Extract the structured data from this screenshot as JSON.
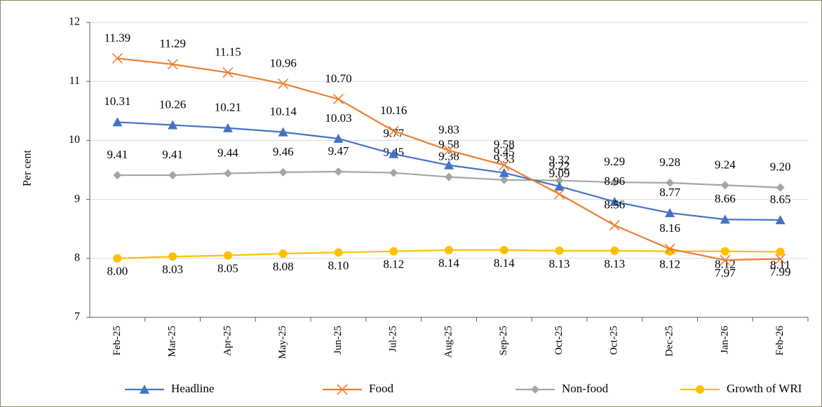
{
  "chart_data": {
    "type": "line",
    "y_label": "Per cent",
    "categories": [
      "Feb-25",
      "Mar-25",
      "Apr-25",
      "May-25",
      "Jun-25",
      "Jul-25",
      "Aug-25",
      "Sep-25",
      "Oct-25",
      "Oct-25",
      "Dec-25",
      "Jan-26",
      "Feb-26"
    ],
    "ylim": [
      7,
      12
    ],
    "yticks": [
      7,
      8,
      9,
      10,
      11,
      12
    ],
    "grid": true,
    "legend": "bottom",
    "series": [
      {
        "name": "Headline",
        "color": "#4472c4",
        "marker": "triangle",
        "values": [
          10.31,
          10.26,
          10.21,
          10.14,
          10.03,
          9.77,
          9.58,
          9.45,
          9.22,
          8.96,
          8.77,
          8.66,
          8.65
        ],
        "value_labels": [
          "10.31",
          "10.26",
          "10.21",
          "10.14",
          "10.03",
          "9.77",
          "9.58",
          "9.45",
          "9.22",
          "8.96",
          "8.77",
          "8.66",
          "8.65"
        ]
      },
      {
        "name": "Food",
        "color": "#ed7d31",
        "marker": "x",
        "values": [
          11.39,
          11.29,
          11.15,
          10.96,
          10.7,
          10.16,
          9.83,
          9.58,
          9.09,
          8.56,
          8.16,
          7.97,
          7.99
        ],
        "value_labels": [
          "11.39",
          "11.29",
          "11.15",
          "10.96",
          "10.70",
          "10.16",
          "9.83",
          "9.58",
          "9.09",
          "8.56",
          "8.16",
          "7.97",
          "7.99"
        ]
      },
      {
        "name": "Non-food",
        "color": "#a5a5a5",
        "marker": "diamond",
        "values": [
          9.41,
          9.41,
          9.44,
          9.46,
          9.47,
          9.45,
          9.38,
          9.33,
          9.32,
          9.29,
          9.28,
          9.24,
          9.2
        ],
        "value_labels": [
          "9.41",
          "9.41",
          "9.44",
          "9.46",
          "9.47",
          "9.45",
          "9.38",
          "9.33",
          "9.32",
          "9.29",
          "9.28",
          "9.24",
          "9.20"
        ]
      },
      {
        "name": "Growth of WRI",
        "color": "#ffc000",
        "marker": "circle",
        "values": [
          8.0,
          8.03,
          8.05,
          8.08,
          8.1,
          8.12,
          8.14,
          8.14,
          8.13,
          8.13,
          8.12,
          8.12,
          8.11
        ],
        "value_labels": [
          "8.00",
          "8.03",
          "8.05",
          "8.08",
          "8.10",
          "8.12",
          "8.14",
          "8.14",
          "8.13",
          "8.13",
          "8.12",
          "8.12",
          "8.11"
        ]
      }
    ]
  }
}
